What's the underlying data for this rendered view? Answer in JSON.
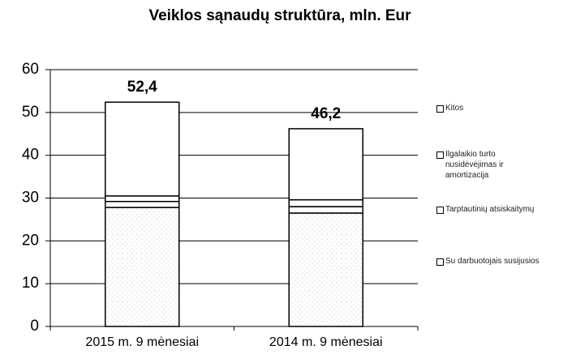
{
  "chart_data": {
    "type": "stacked_bar",
    "title": "Veiklos sąnaudų struktūra, mln. Eur",
    "categories": [
      "2015 m. 9 mėnesiai",
      "2014 m. 9 mėnesiai"
    ],
    "series": [
      {
        "name": "Su darbuotojais susijusios",
        "color": "#ffffff",
        "values": [
          27.8,
          26.5
        ]
      },
      {
        "name": "Tarptautinių atsiskaitymų",
        "color": "#ffffff",
        "values": [
          1.4,
          1.5
        ]
      },
      {
        "name": "Ilgalaikio turto nusidėvėjimas ir amortizacija",
        "color": "#ffffff",
        "values": [
          1.3,
          1.6
        ]
      },
      {
        "name": "Kitos",
        "color": "#ffffff",
        "values": [
          21.9,
          16.6
        ]
      }
    ],
    "annotations": [
      {
        "text": "52,4",
        "value": 52.4
      },
      {
        "text": "46,2",
        "value": 46.2
      }
    ],
    "ylim": [
      0,
      60
    ],
    "yticks": [
      0,
      10,
      20,
      30,
      40,
      50,
      60
    ],
    "grid": true,
    "legend": "right"
  }
}
